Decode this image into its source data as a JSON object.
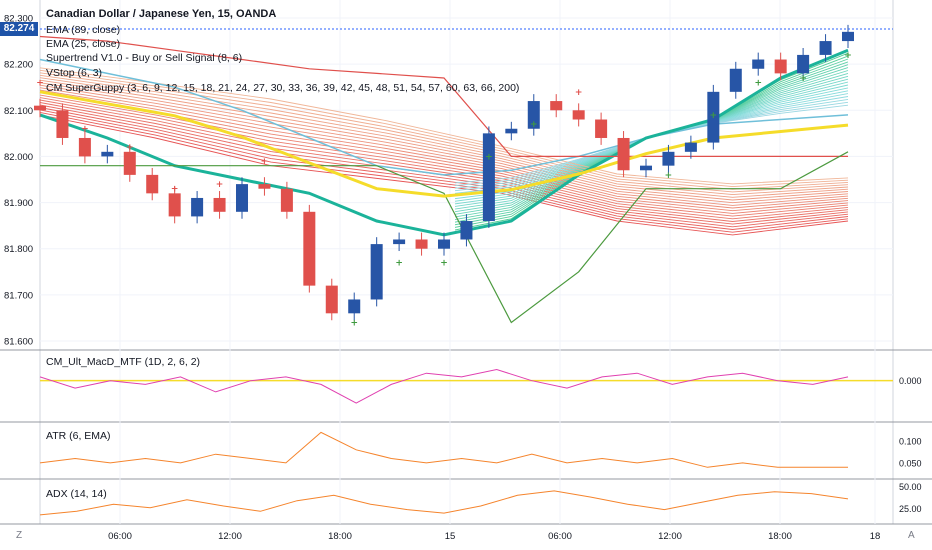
{
  "header": {
    "title": "Canadian Dollar / Japanese Yen, 15, OANDA",
    "indicators": [
      "EMA (89, close)",
      "EMA (25, close)",
      "Supertrend V1.0 - Buy or Sell Signal (8, 6)",
      "VStop (6, 3)",
      "CM SuperGuppy (3, 6, 9, 12, 15, 18, 21, 24, 27, 30, 33, 36, 39, 42, 45, 48, 51, 54, 57, 60, 63, 66, 200)"
    ],
    "last_price": "82.274"
  },
  "panels": {
    "macd_label": "CM_Ult_MacD_MTF (1D, 2, 6, 2)",
    "atr_label": "ATR (6, EMA)",
    "adx_label": "ADX (14, 14)"
  },
  "colors": {
    "up": "#2755a6",
    "down": "#e0504c",
    "ema89": "#6fbfd9",
    "ema200": "#f5dc2a",
    "supertrend": "#e0504c",
    "vstop": "#4c9a3f",
    "teal": "#1bb39a",
    "orange": "#f5842c",
    "magenta": "#e040b0"
  },
  "chart_data": [
    {
      "type": "line",
      "title": "Canadian Dollar / Japanese Yen, 15, OANDA",
      "ylim": [
        81.6,
        82.3
      ],
      "y_ticks": [
        "82.300",
        "82.200",
        "82.100",
        "82.000",
        "81.900",
        "81.800",
        "81.700",
        "81.600"
      ],
      "x_ticks": [
        "06:00",
        "12:00",
        "18:00",
        "15",
        "06:00",
        "12:00",
        "18:00",
        "18"
      ],
      "series": [
        {
          "name": "EMA (89, close)",
          "values": [
            82.21,
            82.18,
            82.15,
            82.1,
            82.04,
            81.98,
            81.96,
            81.97,
            82.0,
            82.04,
            82.07,
            82.08,
            82.09
          ]
        },
        {
          "name": "EMA (25, close)",
          "values": [
            82.09,
            82.04,
            81.98,
            81.95,
            81.92,
            81.86,
            81.83,
            81.86,
            81.96,
            82.04,
            82.08,
            82.17,
            82.23
          ]
        },
        {
          "name": "Supertrend V1.0 - Buy or Sell Signal (8, 6)",
          "values": [
            82.26,
            82.25,
            82.23,
            82.21,
            82.19,
            82.18,
            82.17,
            82.0,
            82.0,
            82.0,
            82.0,
            82.0,
            82.0
          ]
        },
        {
          "name": "VStop (6, 3)",
          "values": [
            81.98,
            81.98,
            81.98,
            81.98,
            81.98,
            81.98,
            81.92,
            81.64,
            81.75,
            81.93,
            81.93,
            81.93,
            82.01
          ]
        }
      ],
      "close": [
        82.1,
        82.04,
        82.0,
        82.01,
        81.96,
        81.92,
        81.87,
        81.91,
        81.88,
        81.94,
        81.93,
        81.88,
        81.72,
        81.66,
        81.69,
        81.81,
        81.82,
        81.8,
        81.82,
        81.86,
        82.05,
        82.06,
        82.12,
        82.1,
        82.08,
        82.04,
        81.97,
        81.98,
        82.01,
        82.03,
        82.14,
        82.19,
        82.21,
        82.18,
        82.22,
        82.25,
        82.27
      ]
    },
    {
      "type": "line",
      "name": "CM_Ult_MacD_MTF (1D, 2, 6, 2)",
      "y_ticks": [
        "0.000"
      ],
      "values": [
        0.01,
        -0.02,
        0.0,
        -0.01,
        0.01,
        -0.03,
        0.0,
        0.01,
        -0.01,
        -0.06,
        -0.01,
        0.02,
        0.01,
        0.03,
        0.0,
        -0.02,
        0.01,
        0.02,
        -0.01,
        0.01,
        0.02,
        0.0,
        -0.01,
        0.01
      ]
    },
    {
      "type": "line",
      "name": "ATR (6, EMA)",
      "y_ticks": [
        "0.100",
        "0.050"
      ],
      "values": [
        0.05,
        0.06,
        0.05,
        0.06,
        0.05,
        0.07,
        0.06,
        0.05,
        0.12,
        0.08,
        0.06,
        0.05,
        0.06,
        0.05,
        0.07,
        0.05,
        0.06,
        0.05,
        0.06,
        0.04,
        0.05,
        0.04,
        0.04,
        0.04
      ]
    },
    {
      "type": "line",
      "name": "ADX (14, 14)",
      "y_ticks": [
        "50.00",
        "25.00"
      ],
      "values": [
        18,
        22,
        30,
        26,
        35,
        28,
        22,
        34,
        40,
        30,
        24,
        20,
        28,
        40,
        45,
        38,
        30,
        24,
        32,
        40,
        44,
        42,
        36
      ]
    }
  ]
}
